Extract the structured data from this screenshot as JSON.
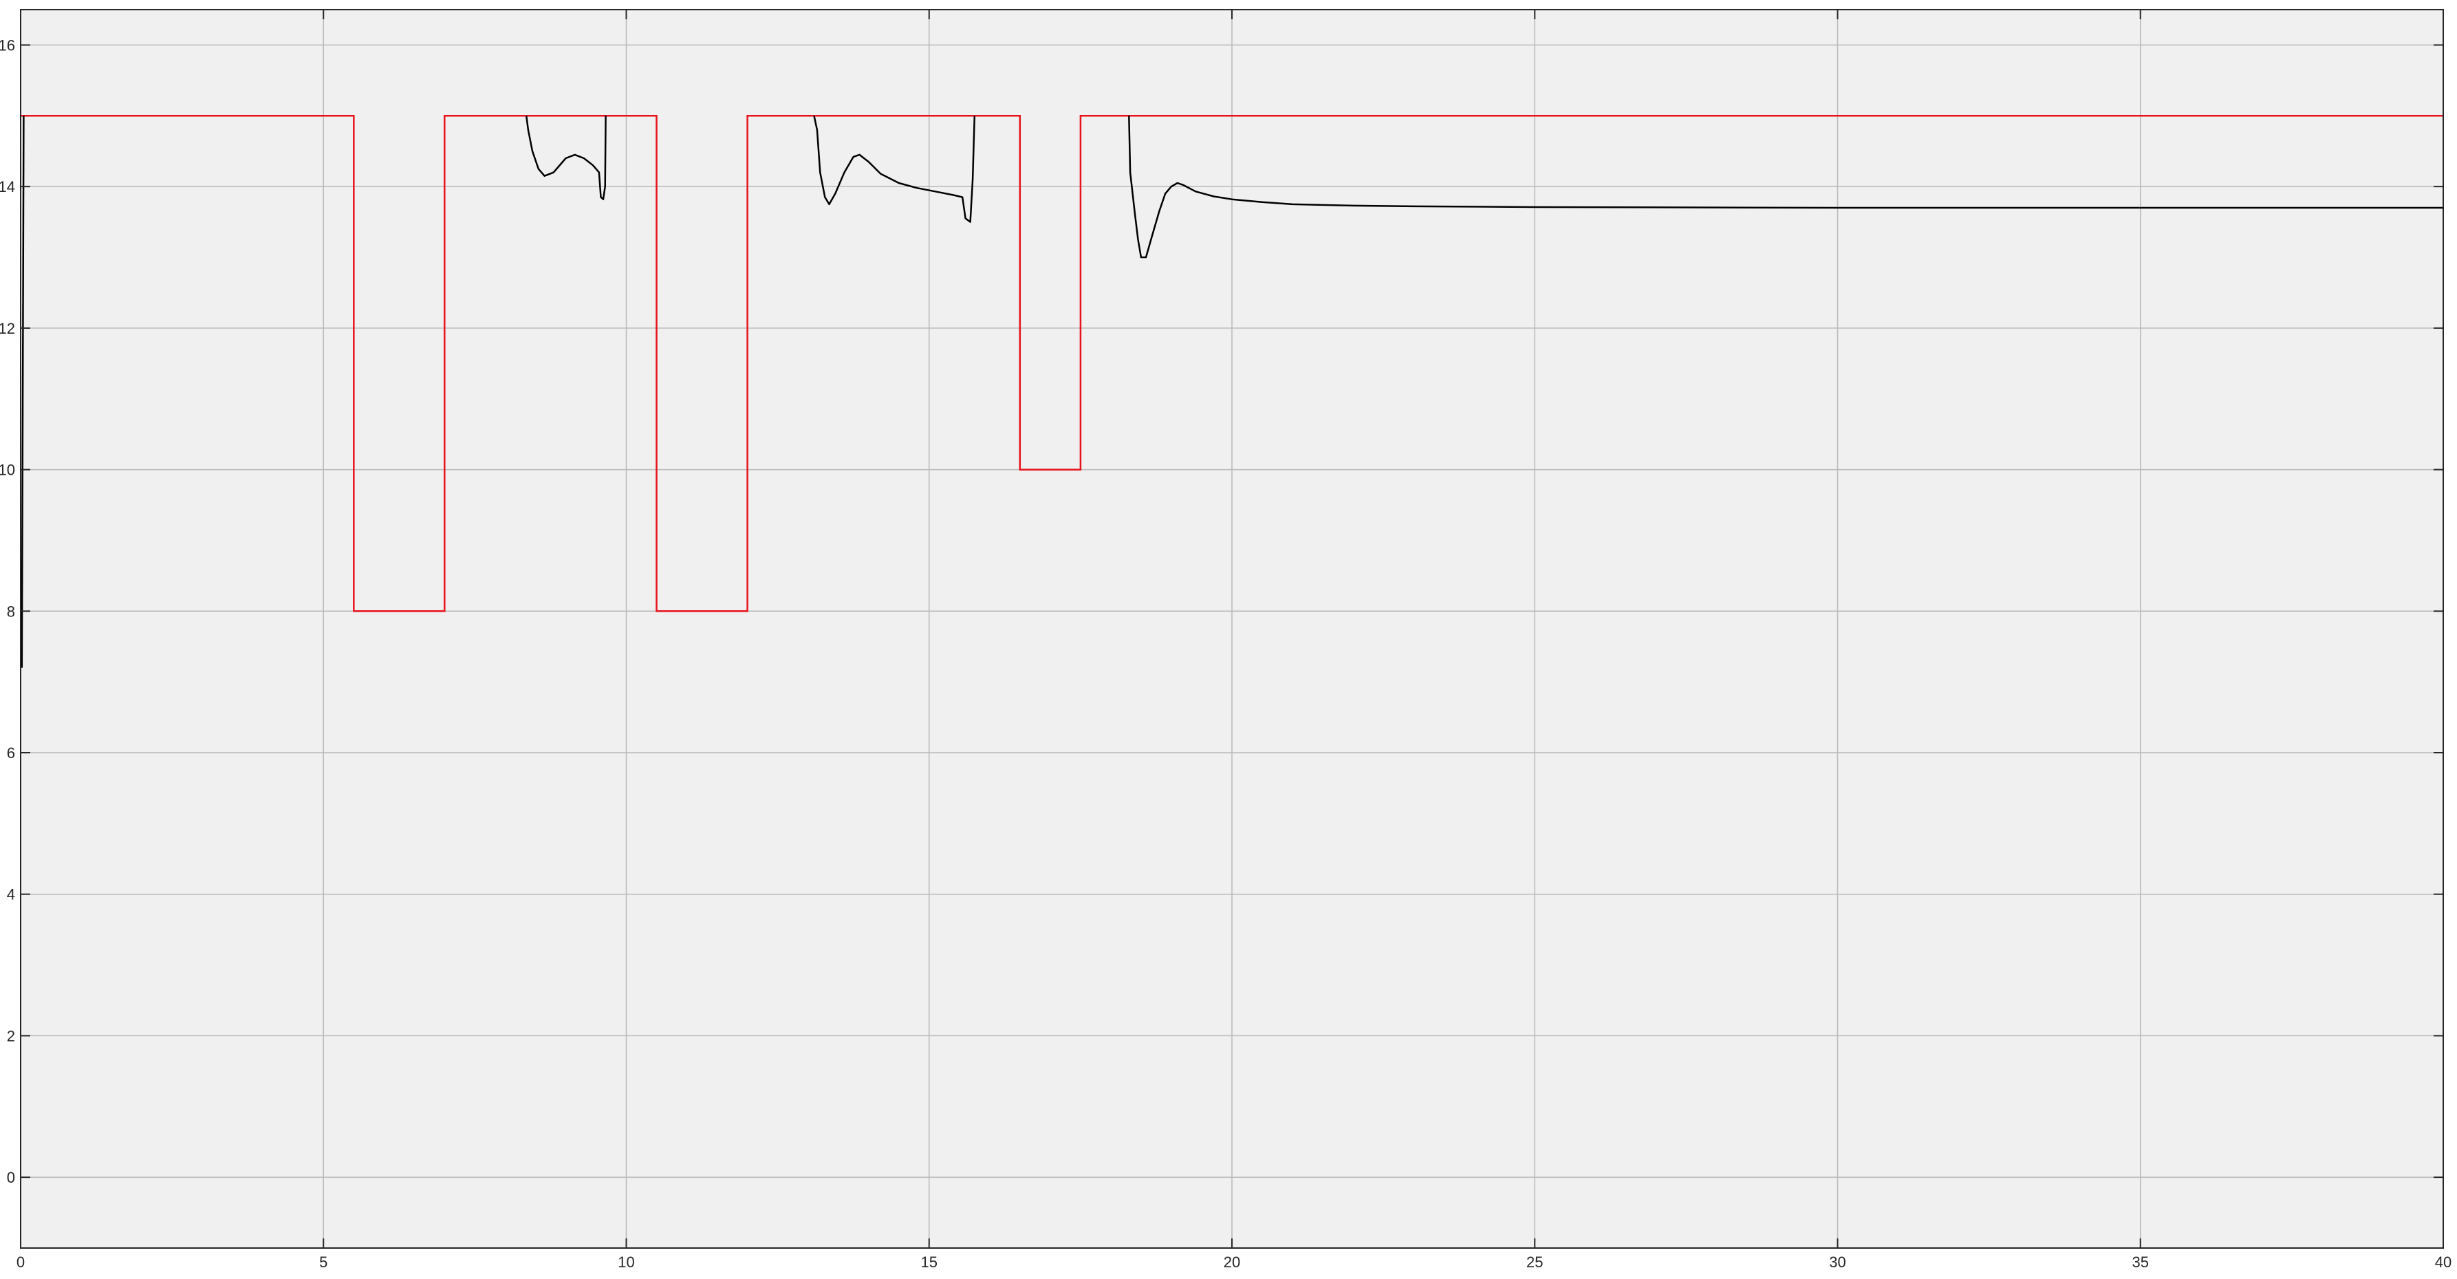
{
  "colors": {
    "figure_bg": "#ffffff",
    "axes_bg": "#f0f0f0",
    "grid": "#b8b8b8",
    "axis": "#262626",
    "tick_text": "#262626",
    "reference_line": "#e8121a",
    "response_line": "#000000"
  },
  "chart_data": {
    "type": "line",
    "title": "",
    "xlabel": "",
    "ylabel": "",
    "xlim": [
      0,
      40
    ],
    "ylim": [
      -1,
      16.5
    ],
    "grid": true,
    "legend": "none",
    "x_ticks": [
      0,
      5,
      10,
      15,
      20,
      25,
      30,
      35,
      40
    ],
    "y_ticks": [
      0,
      2,
      4,
      6,
      8,
      10,
      12,
      14,
      16
    ],
    "series": [
      {
        "color": "#e8121a",
        "style": "step",
        "points": [
          [
            0,
            15
          ],
          [
            5.5,
            15
          ],
          [
            5.5,
            8
          ],
          [
            7,
            8
          ],
          [
            7,
            15
          ],
          [
            10.5,
            15
          ],
          [
            10.5,
            8
          ],
          [
            12,
            8
          ],
          [
            12,
            15
          ],
          [
            16.5,
            15
          ],
          [
            16.5,
            10
          ],
          [
            17.5,
            10
          ],
          [
            17.5,
            15
          ],
          [
            40,
            15
          ]
        ]
      },
      {
        "color": "#000000",
        "style": "segments",
        "segments": [
          [
            [
              0.02,
              7.2
            ],
            [
              0.05,
              15
            ]
          ],
          [
            [
              8.35,
              15
            ],
            [
              8.38,
              14.8
            ],
            [
              8.45,
              14.5
            ],
            [
              8.55,
              14.25
            ],
            [
              8.65,
              14.15
            ],
            [
              8.8,
              14.2
            ],
            [
              9.0,
              14.4
            ],
            [
              9.15,
              14.45
            ],
            [
              9.3,
              14.4
            ],
            [
              9.45,
              14.3
            ],
            [
              9.55,
              14.2
            ],
            [
              9.58,
              13.85
            ],
            [
              9.62,
              13.82
            ],
            [
              9.65,
              14.0
            ],
            [
              9.66,
              15
            ]
          ],
          [
            [
              13.1,
              15
            ],
            [
              13.15,
              14.8
            ],
            [
              13.2,
              14.2
            ],
            [
              13.28,
              13.85
            ],
            [
              13.35,
              13.75
            ],
            [
              13.45,
              13.9
            ],
            [
              13.6,
              14.2
            ],
            [
              13.75,
              14.42
            ],
            [
              13.85,
              14.45
            ],
            [
              14.0,
              14.35
            ],
            [
              14.2,
              14.18
            ],
            [
              14.5,
              14.05
            ],
            [
              14.8,
              13.98
            ],
            [
              15.1,
              13.93
            ],
            [
              15.4,
              13.88
            ],
            [
              15.55,
              13.85
            ],
            [
              15.6,
              13.55
            ],
            [
              15.68,
              13.5
            ],
            [
              15.72,
              14.1
            ],
            [
              15.75,
              15
            ]
          ],
          [
            [
              18.3,
              15
            ],
            [
              18.32,
              14.2
            ],
            [
              18.4,
              13.6
            ],
            [
              18.45,
              13.25
            ],
            [
              18.5,
              13.0
            ],
            [
              18.58,
              13.0
            ],
            [
              18.68,
              13.3
            ],
            [
              18.8,
              13.65
            ],
            [
              18.9,
              13.9
            ],
            [
              19.0,
              14.0
            ],
            [
              19.1,
              14.05
            ],
            [
              19.2,
              14.02
            ],
            [
              19.4,
              13.93
            ],
            [
              19.7,
              13.86
            ],
            [
              20.0,
              13.82
            ],
            [
              20.5,
              13.78
            ],
            [
              21,
              13.75
            ],
            [
              22,
              13.73
            ],
            [
              23,
              13.72
            ],
            [
              25,
              13.71
            ],
            [
              30,
              13.7
            ],
            [
              35,
              13.7
            ],
            [
              40,
              13.7
            ]
          ]
        ]
      }
    ]
  }
}
